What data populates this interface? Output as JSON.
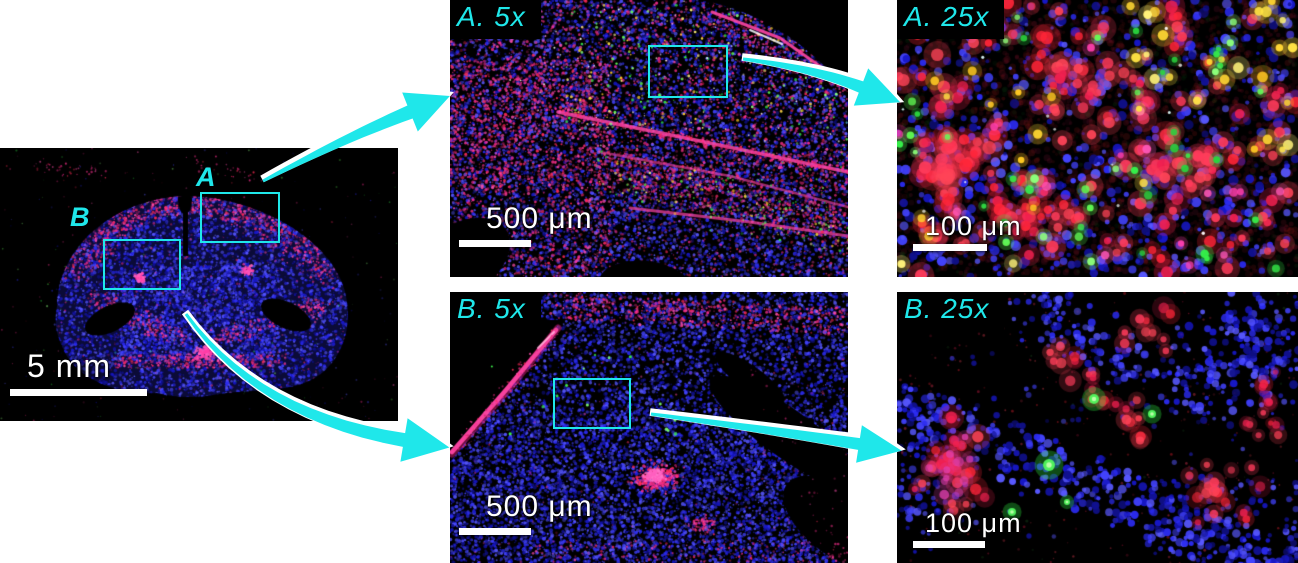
{
  "figure": {
    "palette": {
      "background": "#ffffff",
      "panel_black": "#000000",
      "annotation_cyan": "#1fe7ea",
      "scale_white": "#ffffff",
      "nuclei_blue": [
        "#1717c8",
        "#2b2bf0",
        "#4343ff",
        "#10108f",
        "#5858ff"
      ],
      "stain_magenta": [
        "#ff2d92",
        "#ef2f86",
        "#ff4fae",
        "#ff2a55",
        "#d92878"
      ],
      "stain_red": [
        "#ff2538",
        "#ff3b5b",
        "#f02050",
        "#ff4458"
      ],
      "stain_green": [
        "#35f04a",
        "#63ff55",
        "#2ad43e",
        "#8cff7a"
      ],
      "stain_yellow": [
        "#ffe344",
        "#ffd633",
        "#fff27a",
        "#ffc823"
      ],
      "vessel_pink": "#ff46a4"
    },
    "panels": {
      "overview": {
        "region_label_a": "A",
        "region_label_b": "B",
        "scale_bar_text": "5 mm"
      },
      "a5x": {
        "label": "A. 5x",
        "scale_bar_text": "500 μm"
      },
      "b5x": {
        "label": "B. 5x",
        "scale_bar_text": "500 μm"
      },
      "a25x": {
        "label": "A. 25x",
        "scale_bar_text": "100 μm"
      },
      "b25x": {
        "label": "B. 25x",
        "scale_bar_text": "100 μm"
      }
    }
  }
}
